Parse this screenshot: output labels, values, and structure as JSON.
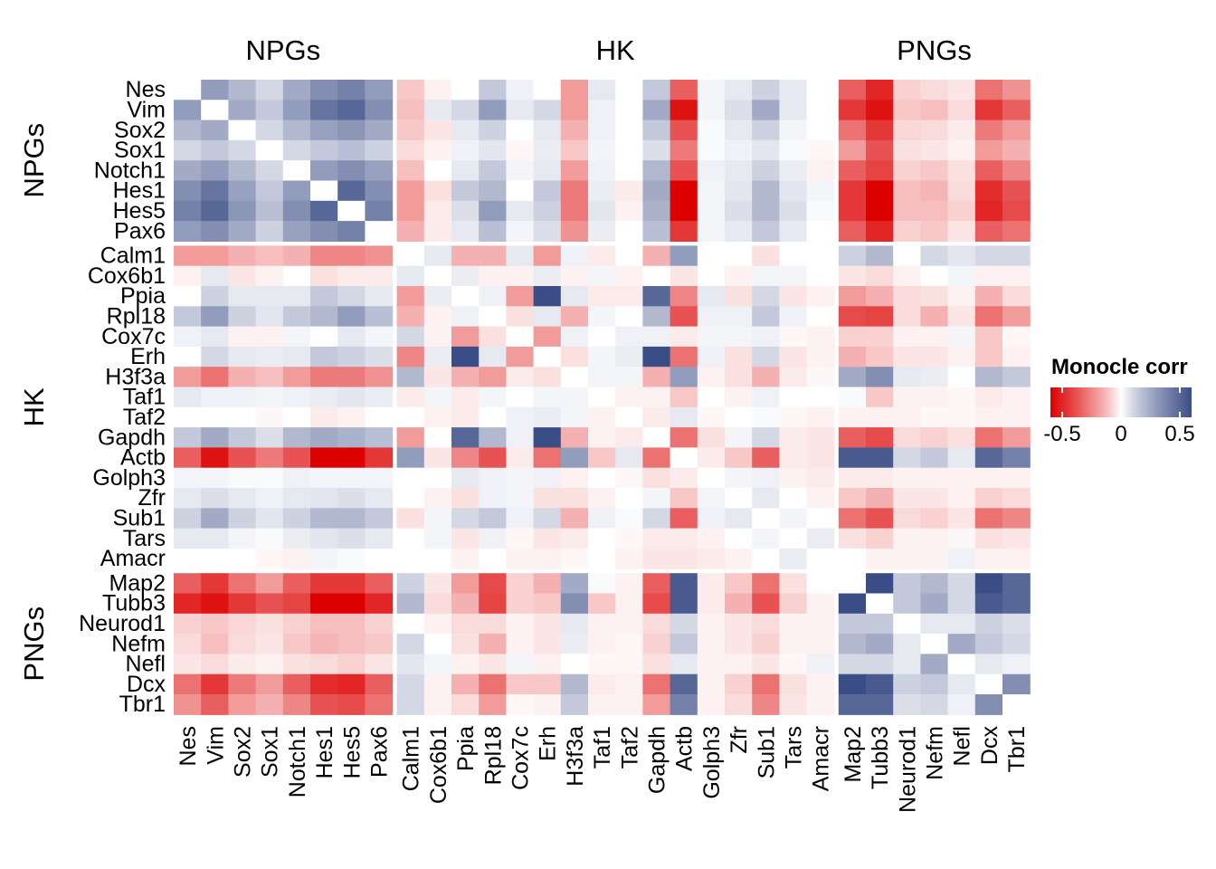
{
  "chart_data": {
    "type": "heatmap",
    "groups": [
      {
        "name": "NPGs",
        "genes": [
          "Nes",
          "Vim",
          "Sox2",
          "Sox1",
          "Notch1",
          "Hes1",
          "Hes5",
          "Pax6"
        ]
      },
      {
        "name": "HK",
        "genes": [
          "Calm1",
          "Cox6b1",
          "Ppia",
          "Rpl18",
          "Cox7c",
          "Erh",
          "H3f3a",
          "Taf1",
          "Taf2",
          "Gapdh",
          "Actb",
          "Golph3",
          "Zfr",
          "Sub1",
          "Tars",
          "Amacr"
        ]
      },
      {
        "name": "PNGs",
        "genes": [
          "Map2",
          "Tubb3",
          "Neurod1",
          "Nefm",
          "Nefl",
          "Dcx",
          "Tbr1"
        ]
      }
    ],
    "values": [
      [
        null,
        0.3,
        0.2,
        0.1,
        0.25,
        0.35,
        0.4,
        0.3,
        -0.1,
        -0.02,
        0,
        0.15,
        0.03,
        0,
        -0.2,
        0.05,
        0,
        0.15,
        -0.35,
        0.02,
        0.05,
        0.12,
        0.05,
        0,
        -0.35,
        -0.5,
        -0.08,
        -0.06,
        -0.04,
        -0.3,
        -0.22
      ],
      [
        0.3,
        null,
        0.25,
        0.15,
        0.3,
        0.45,
        0.5,
        0.35,
        -0.12,
        0.05,
        0.1,
        0.3,
        0.05,
        0.1,
        -0.2,
        0.03,
        0,
        0.25,
        -0.55,
        0.02,
        0.08,
        0.25,
        0.05,
        0,
        -0.45,
        -0.55,
        -0.1,
        -0.12,
        -0.06,
        -0.45,
        -0.35
      ],
      [
        0.2,
        0.25,
        null,
        0.1,
        0.2,
        0.28,
        0.32,
        0.25,
        -0.1,
        -0.04,
        0.05,
        0.12,
        0,
        0.05,
        -0.15,
        0.03,
        0,
        0.15,
        -0.38,
        0.01,
        0.05,
        0.12,
        0.02,
        0,
        -0.3,
        -0.45,
        -0.07,
        -0.06,
        -0.03,
        -0.28,
        -0.2
      ],
      [
        0.1,
        0.15,
        0.1,
        null,
        0.1,
        0.15,
        0.18,
        0.12,
        -0.06,
        -0.02,
        0.03,
        0.06,
        -0.01,
        0.04,
        -0.1,
        0.02,
        0,
        0.08,
        -0.28,
        0.01,
        0.03,
        0.06,
        0.01,
        -0.01,
        -0.2,
        -0.38,
        -0.05,
        -0.04,
        -0.02,
        -0.2,
        -0.15
      ],
      [
        0.25,
        0.3,
        0.2,
        0.1,
        null,
        0.3,
        0.35,
        0.28,
        -0.12,
        0,
        0.05,
        0.15,
        0.02,
        0.05,
        -0.2,
        0.03,
        0,
        0.2,
        -0.38,
        0.03,
        0.05,
        0.12,
        0.04,
        -0.02,
        -0.35,
        -0.42,
        -0.08,
        -0.1,
        -0.05,
        -0.35,
        -0.25
      ],
      [
        0.35,
        0.45,
        0.28,
        0.15,
        0.3,
        null,
        0.5,
        0.35,
        -0.2,
        -0.05,
        0.15,
        0.2,
        0.0,
        0.15,
        -0.28,
        0.04,
        -0.03,
        0.25,
        -0.6,
        0.02,
        0.06,
        0.2,
        0.06,
        0.02,
        -0.45,
        -0.6,
        -0.12,
        -0.14,
        -0.06,
        -0.48,
        -0.38
      ],
      [
        0.4,
        0.5,
        0.32,
        0.18,
        0.35,
        0.5,
        null,
        0.4,
        -0.2,
        -0.03,
        0.08,
        0.3,
        0.05,
        0.12,
        -0.28,
        0.06,
        -0.02,
        0.22,
        -0.6,
        0.02,
        0.08,
        0.2,
        0.08,
        0.01,
        -0.45,
        -0.6,
        -0.12,
        -0.12,
        -0.08,
        -0.5,
        -0.4
      ],
      [
        0.3,
        0.35,
        0.25,
        0.12,
        0.28,
        0.35,
        0.4,
        null,
        -0.15,
        -0.03,
        0.05,
        0.18,
        0.02,
        0.08,
        -0.22,
        0.04,
        0,
        0.18,
        -0.45,
        0.02,
        0.05,
        0.15,
        0.05,
        0,
        -0.35,
        -0.5,
        -0.08,
        -0.1,
        -0.04,
        -0.35,
        -0.3
      ],
      [
        -0.2,
        -0.2,
        -0.15,
        -0.12,
        -0.15,
        -0.25,
        -0.25,
        -0.22,
        null,
        0.05,
        -0.15,
        -0.15,
        0.05,
        -0.2,
        0.03,
        -0.03,
        0,
        -0.15,
        0.3,
        0,
        0,
        -0.05,
        0,
        0,
        0.12,
        0.2,
        0,
        0.1,
        0.06,
        0.1,
        0.1
      ],
      [
        -0.02,
        0.05,
        -0.04,
        -0.02,
        0,
        -0.05,
        -0.03,
        -0.03,
        0.05,
        null,
        0.04,
        -0.02,
        -0.02,
        0.04,
        -0.02,
        0.02,
        -0.02,
        0,
        -0.04,
        0,
        -0.02,
        0.02,
        0.02,
        0,
        -0.04,
        -0.06,
        -0.02,
        0,
        0.02,
        -0.02,
        -0.02
      ],
      [
        0,
        0.12,
        0.05,
        0.05,
        0.05,
        0.15,
        0.1,
        0.05,
        -0.2,
        0.04,
        null,
        0.03,
        -0.2,
        0.6,
        0.05,
        -0.03,
        -0.03,
        0.5,
        -0.25,
        0.05,
        -0.05,
        0.1,
        -0.04,
        -0.02,
        -0.2,
        -0.15,
        -0.06,
        -0.05,
        -0.02,
        -0.15,
        -0.06
      ],
      [
        0.15,
        0.3,
        0.12,
        0.06,
        0.15,
        0.2,
        0.3,
        0.18,
        -0.15,
        -0.02,
        0.03,
        null,
        -0.05,
        0.05,
        -0.15,
        0.02,
        0,
        0.2,
        -0.38,
        0.03,
        0.03,
        0.15,
        0.03,
        0,
        -0.4,
        -0.42,
        -0.06,
        -0.15,
        -0.04,
        -0.3,
        -0.2
      ],
      [
        0.03,
        0.05,
        -0.02,
        -0.02,
        0.02,
        0.0,
        0.05,
        0.02,
        0.1,
        -0.02,
        -0.2,
        -0.05,
        null,
        -0.2,
        0.03,
        0.0,
        0.03,
        0.03,
        -0.03,
        0.02,
        0.02,
        0.03,
        -0.01,
        -0.02,
        -0.08,
        -0.08,
        -0.02,
        -0.02,
        0.02,
        -0.1,
        -0.01
      ],
      [
        0,
        0.1,
        0.05,
        0.04,
        0.05,
        0.15,
        0.12,
        0.08,
        -0.25,
        0.04,
        0.6,
        0.05,
        -0.2,
        null,
        -0.05,
        0.02,
        0.04,
        0.6,
        -0.3,
        0.03,
        -0.05,
        0.1,
        -0.04,
        -0.02,
        -0.15,
        -0.1,
        -0.04,
        -0.04,
        -0.02,
        -0.1,
        -0.02
      ],
      [
        -0.2,
        -0.3,
        -0.15,
        -0.12,
        -0.2,
        -0.28,
        -0.28,
        -0.22,
        0.2,
        -0.04,
        -0.15,
        -0.2,
        -0.03,
        -0.05,
        null,
        0.02,
        0.02,
        -0.15,
        0.3,
        -0.02,
        -0.05,
        -0.15,
        -0.03,
        -0.01,
        0.25,
        0.35,
        0.05,
        0.04,
        0,
        0.2,
        0.15
      ],
      [
        0.05,
        0.03,
        0.03,
        0.02,
        0.03,
        0.04,
        0.06,
        0.04,
        -0.03,
        0.02,
        -0.03,
        0.02,
        0.0,
        0.02,
        0.02,
        null,
        -0.02,
        -0.02,
        -0.1,
        0,
        -0.02,
        0.03,
        0.0,
        0,
        0.01,
        -0.1,
        -0.02,
        -0.02,
        -0.01,
        -0.03,
        -0.02
      ],
      [
        0,
        0,
        0,
        -0.01,
        0,
        -0.03,
        -0.02,
        0,
        0,
        -0.02,
        -0.03,
        0,
        0.03,
        0.04,
        0.02,
        -0.02,
        null,
        -0.03,
        0.05,
        -0.01,
        0,
        0.01,
        -0.01,
        -0.02,
        -0.02,
        -0.02,
        -0.02,
        -0.01,
        -0.01,
        -0.02,
        -0.02
      ],
      [
        0.15,
        0.25,
        0.15,
        0.08,
        0.2,
        0.25,
        0.22,
        0.18,
        -0.2,
        0,
        0.5,
        0.2,
        0.03,
        0.6,
        -0.15,
        -0.02,
        -0.03,
        null,
        -0.3,
        -0.05,
        0.02,
        0.1,
        -0.03,
        -0.04,
        -0.35,
        -0.4,
        -0.06,
        -0.08,
        -0.05,
        -0.3,
        -0.2
      ],
      [
        -0.35,
        -0.55,
        -0.38,
        -0.28,
        -0.38,
        -0.6,
        -0.6,
        -0.45,
        0.3,
        -0.04,
        -0.25,
        -0.38,
        -0.03,
        -0.3,
        0.3,
        -0.1,
        0.05,
        -0.3,
        null,
        -0.03,
        -0.1,
        -0.35,
        -0.03,
        -0.04,
        0.55,
        0.55,
        0.1,
        0.15,
        0.05,
        0.5,
        0.4
      ],
      [
        0.02,
        0.02,
        0.01,
        0.01,
        0.03,
        0.02,
        0.02,
        0.02,
        0,
        0,
        0.05,
        0.03,
        0.02,
        0.03,
        -0.02,
        0,
        -0.01,
        -0.05,
        -0.03,
        null,
        0.02,
        0.03,
        -0.02,
        -0.03,
        -0.03,
        -0.03,
        -0.02,
        -0.02,
        -0.02,
        -0.02,
        -0.02
      ],
      [
        0.05,
        0.08,
        0.05,
        0.03,
        0.05,
        0.06,
        0.08,
        0.05,
        0,
        -0.02,
        -0.05,
        0.03,
        0.02,
        -0.05,
        -0.05,
        -0.02,
        0,
        0.02,
        -0.1,
        0.02,
        null,
        0.05,
        0,
        -0.02,
        -0.1,
        -0.15,
        -0.04,
        -0.04,
        -0.02,
        -0.08,
        -0.06
      ],
      [
        0.12,
        0.25,
        0.12,
        0.06,
        0.12,
        0.2,
        0.2,
        0.15,
        -0.05,
        0.02,
        0.1,
        0.15,
        0.03,
        0.1,
        -0.15,
        0.03,
        0.01,
        0.1,
        -0.35,
        0.03,
        0.05,
        null,
        0.02,
        0,
        -0.3,
        -0.38,
        -0.06,
        -0.08,
        -0.04,
        -0.3,
        -0.25
      ],
      [
        0.05,
        0.05,
        0.02,
        0.01,
        0.04,
        0.06,
        0.08,
        0.05,
        0,
        0.02,
        -0.04,
        0.03,
        -0.01,
        -0.04,
        -0.03,
        0,
        -0.01,
        -0.03,
        -0.03,
        -0.02,
        0,
        0.02,
        null,
        0.04,
        -0.05,
        -0.08,
        -0.02,
        -0.02,
        -0.01,
        -0.05,
        -0.04
      ],
      [
        0,
        0,
        0,
        -0.01,
        -0.02,
        0.02,
        0.01,
        0,
        0,
        0,
        -0.02,
        0,
        -0.02,
        -0.02,
        -0.01,
        0,
        -0.02,
        -0.04,
        -0.04,
        -0.03,
        -0.02,
        0,
        0.04,
        null,
        0,
        -0.02,
        -0.02,
        -0.02,
        0.03,
        -0.02,
        -0.02
      ],
      [
        -0.35,
        -0.45,
        -0.3,
        -0.2,
        -0.35,
        -0.45,
        -0.45,
        -0.35,
        0.12,
        -0.04,
        -0.2,
        -0.4,
        -0.08,
        -0.15,
        0.25,
        0.01,
        -0.02,
        -0.35,
        0.55,
        -0.03,
        -0.1,
        -0.3,
        -0.05,
        0,
        null,
        0.6,
        0.15,
        0.2,
        0.1,
        0.6,
        0.5
      ],
      [
        -0.5,
        -0.55,
        -0.45,
        -0.38,
        -0.42,
        -0.6,
        -0.6,
        -0.5,
        0.2,
        -0.06,
        -0.15,
        -0.42,
        -0.08,
        -0.1,
        0.35,
        -0.1,
        -0.02,
        -0.4,
        0.55,
        -0.03,
        -0.15,
        -0.38,
        -0.08,
        -0.02,
        0.6,
        null,
        0.15,
        0.25,
        0.1,
        0.55,
        0.5
      ],
      [
        -0.08,
        -0.1,
        -0.07,
        -0.05,
        -0.08,
        -0.12,
        -0.12,
        -0.08,
        0,
        -0.02,
        -0.06,
        -0.06,
        -0.02,
        -0.04,
        0.05,
        -0.02,
        -0.02,
        -0.06,
        0.1,
        -0.02,
        -0.04,
        -0.06,
        -0.02,
        -0.02,
        0.15,
        0.15,
        null,
        0.05,
        0.05,
        0.12,
        0.08
      ],
      [
        -0.06,
        -0.12,
        -0.06,
        -0.04,
        -0.1,
        -0.14,
        -0.12,
        -0.1,
        0.1,
        0,
        -0.05,
        -0.15,
        -0.02,
        -0.04,
        0.04,
        -0.02,
        -0.01,
        -0.08,
        0.15,
        -0.02,
        -0.04,
        -0.08,
        -0.02,
        -0.02,
        0.2,
        0.25,
        0.05,
        null,
        0.25,
        0.15,
        0.1
      ],
      [
        -0.04,
        -0.06,
        -0.03,
        -0.02,
        -0.05,
        -0.06,
        -0.08,
        -0.04,
        0.06,
        0.02,
        -0.02,
        -0.04,
        0.02,
        -0.02,
        0,
        -0.01,
        -0.01,
        -0.05,
        0.05,
        -0.02,
        -0.02,
        -0.04,
        -0.01,
        0.03,
        0.1,
        0.1,
        0.05,
        0.25,
        null,
        0.05,
        0.03
      ],
      [
        -0.3,
        -0.45,
        -0.28,
        -0.2,
        -0.35,
        -0.48,
        -0.5,
        -0.35,
        0.1,
        -0.02,
        -0.15,
        -0.3,
        -0.1,
        -0.1,
        0.2,
        -0.03,
        -0.02,
        -0.3,
        0.5,
        -0.02,
        -0.08,
        -0.3,
        -0.05,
        -0.02,
        0.6,
        0.55,
        0.12,
        0.15,
        0.05,
        null,
        0.35
      ],
      [
        -0.22,
        -0.35,
        -0.2,
        -0.15,
        -0.25,
        -0.38,
        -0.4,
        -0.3,
        0.1,
        -0.02,
        -0.06,
        -0.2,
        -0.01,
        -0.02,
        0.15,
        -0.02,
        -0.02,
        -0.2,
        0.4,
        -0.02,
        -0.06,
        -0.25,
        -0.04,
        -0.02,
        0.5,
        0.5,
        0.08,
        0.1,
        0.03,
        0.35,
        null
      ]
    ],
    "legend": {
      "title": "Monocle corr",
      "ticks": [
        -0.5,
        0,
        0.5
      ],
      "tick_labels": [
        "-0.5",
        "0",
        "0.5"
      ],
      "range": [
        -0.6,
        0.6
      ],
      "placement": "right"
    },
    "colors": {
      "low": "#dd0000",
      "mid": "#ffffff",
      "high": "#3b4d86",
      "na": "#ffffff"
    }
  }
}
